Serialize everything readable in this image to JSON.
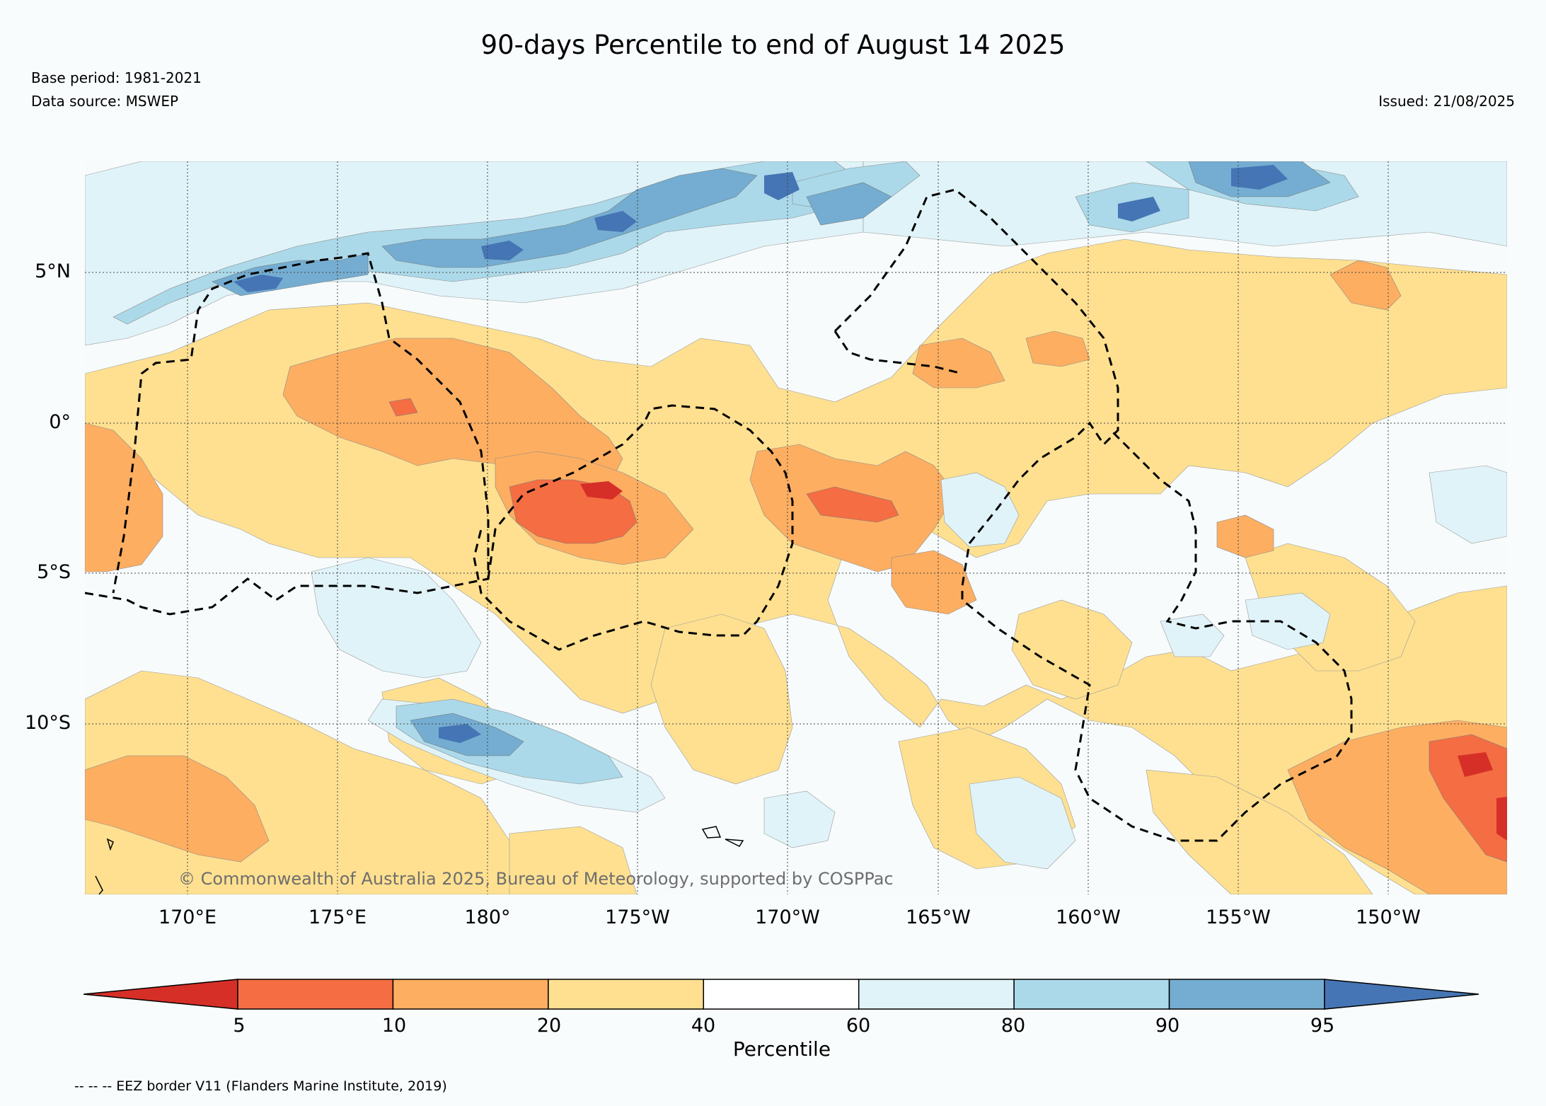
{
  "title": "90-days Percentile to end of August 14 2025",
  "base_period": "Base period: 1981-2021",
  "data_source": "Data source: MSWEP",
  "issued": "Issued: 21/08/2025",
  "copyright": "© Commonwealth of Australia 2025, Bureau of Meteorology, supported by COSPPac",
  "eez_note": "-- -- -- EEZ border V11 (Flanders Marine Institute, 2019)",
  "map": {
    "lat_labels": [
      "5°N",
      "0°",
      "5°S",
      "10°S"
    ],
    "lon_labels": [
      "170°E",
      "175°E",
      "180°",
      "175°W",
      "170°W",
      "165°W",
      "160°W",
      "155°W",
      "150°W"
    ],
    "gridlines": "dotted",
    "background_class_color": "#f7fbfc"
  },
  "colorbar": {
    "label": "Percentile",
    "ticks": [
      "5",
      "10",
      "20",
      "40",
      "60",
      "80",
      "90",
      "95"
    ],
    "colors": [
      "#d62f27",
      "#f46d43",
      "#fdae61",
      "#fee090",
      "#ffffff",
      "#e0f3f8",
      "#abd9e9",
      "#74add1",
      "#4575b4"
    ],
    "extend": "both"
  }
}
